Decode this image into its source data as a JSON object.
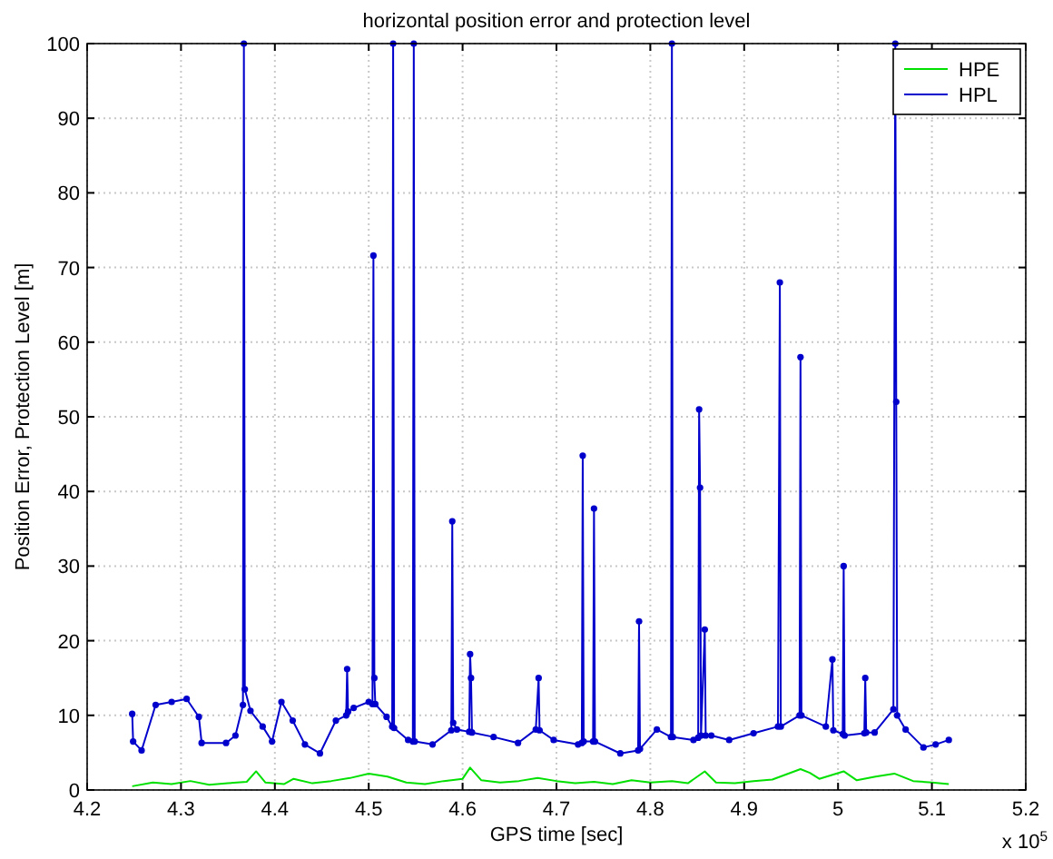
{
  "chart_data": {
    "type": "line",
    "title": "horizontal position error and protection level",
    "xlabel": "GPS time [sec]",
    "ylabel": "Position Error, Protection Level [m]",
    "annotations": [
      "x 10$^{5}$"
    ],
    "xlim": [
      4.2,
      5.2
    ],
    "xticks": [
      4.2,
      4.3,
      4.4,
      4.5,
      4.6,
      4.7,
      4.8,
      4.9,
      {
        "value": 5,
        "label": "5"
      },
      5.1,
      5.2
    ],
    "ylim": [
      0,
      100
    ],
    "yticks": [
      0,
      10,
      20,
      30,
      40,
      50,
      60,
      70,
      80,
      90,
      100
    ],
    "grid": true,
    "legend": "top right",
    "series": [
      {
        "name": "HPE",
        "color": "#00e000",
        "marker": "none",
        "x": [
          4.248,
          4.27,
          4.29,
          4.31,
          4.33,
          4.35,
          4.37,
          4.38,
          4.39,
          4.41,
          4.42,
          4.44,
          4.46,
          4.48,
          4.5,
          4.52,
          4.54,
          4.56,
          4.58,
          4.6,
          4.608,
          4.62,
          4.64,
          4.66,
          4.68,
          4.7,
          4.72,
          4.74,
          4.76,
          4.78,
          4.8,
          4.823,
          4.84,
          4.858,
          4.87,
          4.89,
          4.91,
          4.93,
          4.96,
          4.97,
          4.98,
          5.006,
          5.02,
          5.04,
          5.06,
          5.08,
          5.1,
          5.118
        ],
        "values": [
          0.5,
          1.0,
          0.8,
          1.2,
          0.7,
          0.9,
          1.1,
          2.5,
          1.0,
          0.8,
          1.5,
          0.9,
          1.2,
          1.6,
          2.2,
          1.8,
          1.0,
          0.8,
          1.2,
          1.5,
          3.0,
          1.3,
          1.0,
          1.2,
          1.6,
          1.2,
          0.9,
          1.1,
          0.8,
          1.3,
          1.0,
          1.2,
          0.9,
          2.5,
          1.0,
          0.9,
          1.2,
          1.4,
          2.8,
          2.3,
          1.5,
          2.5,
          1.3,
          1.8,
          2.2,
          1.2,
          1.0,
          0.8
        ]
      },
      {
        "name": "HPL",
        "color": "#0000cc",
        "marker": "circle",
        "x": [
          4.248,
          4.249,
          4.258,
          4.273,
          4.29,
          4.306,
          4.319,
          4.322,
          4.348,
          4.358,
          4.366,
          4.367,
          4.368,
          4.374,
          4.387,
          4.397,
          4.407,
          4.419,
          4.432,
          4.448,
          4.465,
          4.476,
          4.477,
          4.478,
          4.484,
          4.5,
          4.504,
          4.505,
          4.506,
          4.507,
          4.519,
          4.525,
          4.526,
          4.527,
          4.542,
          4.547,
          4.548,
          4.549,
          4.568,
          4.588,
          4.589,
          4.59,
          4.594,
          4.607,
          4.608,
          4.609,
          4.61,
          4.633,
          4.659,
          4.678,
          4.681,
          4.682,
          4.697,
          4.723,
          4.727,
          4.728,
          4.729,
          4.739,
          4.74,
          4.741,
          4.768,
          4.787,
          4.788,
          4.789,
          4.807,
          4.822,
          4.823,
          4.824,
          4.846,
          4.851,
          4.852,
          4.853,
          4.854,
          4.858,
          4.859,
          4.865,
          4.884,
          4.91,
          4.936,
          4.938,
          4.939,
          4.959,
          4.96,
          4.961,
          4.987,
          4.994,
          4.995,
          5.005,
          5.006,
          5.007,
          5.028,
          5.029,
          5.03,
          5.039,
          5.059,
          5.061,
          5.062,
          5.063,
          5.072,
          5.091,
          5.104,
          5.118
        ],
        "values": [
          10.2,
          6.5,
          5.3,
          11.4,
          11.8,
          12.2,
          9.8,
          6.3,
          6.3,
          7.3,
          11.4,
          100,
          13.5,
          10.6,
          8.5,
          6.5,
          11.8,
          9.3,
          6.1,
          4.9,
          9.3,
          10,
          16.2,
          10.5,
          11.0,
          11.8,
          11.5,
          71.6,
          15,
          11.5,
          9.8,
          8.5,
          100,
          8.3,
          6.7,
          6.5,
          100,
          6.5,
          6.1,
          8,
          36,
          9,
          8.1,
          7.8,
          18.2,
          15,
          7.7,
          7.1,
          6.3,
          8.1,
          15,
          8,
          6.7,
          6.1,
          6.3,
          44.8,
          6.5,
          6.5,
          37.7,
          6.5,
          4.9,
          5.3,
          22.6,
          5.5,
          8.1,
          7.1,
          100,
          7.1,
          6.7,
          7.0,
          51,
          40.5,
          7.3,
          21.5,
          7.3,
          7.3,
          6.7,
          7.6,
          8.5,
          68,
          8.5,
          10,
          58,
          10,
          8.5,
          17.5,
          8,
          7.5,
          30,
          7.3,
          7.6,
          15,
          7.7,
          7.7,
          10.8,
          100,
          52,
          10,
          8.1,
          5.7,
          6.1,
          6.7
        ]
      }
    ]
  }
}
